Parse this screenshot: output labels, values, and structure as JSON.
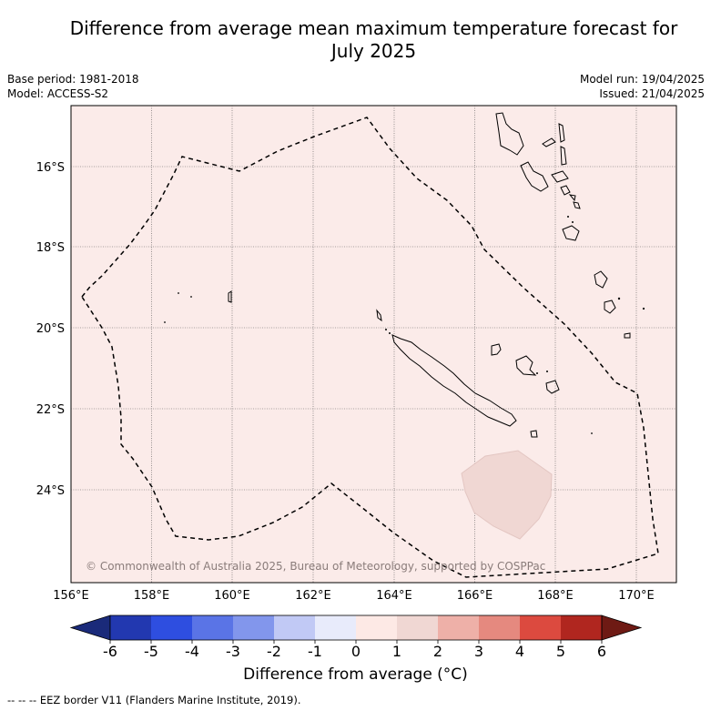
{
  "title_line1": "Difference from average mean maximum temperature forecast for",
  "title_line2": "July 2025",
  "meta_left": {
    "base_period": "Base period: 1981-2018",
    "model": "Model: ACCESS-S2"
  },
  "meta_right": {
    "model_run": "Model run: 19/04/2025",
    "issued": "Issued: 21/04/2025"
  },
  "copyright": "© Commonwealth of Australia 2025, Bureau of Meteorology, supported by COSPPac",
  "lat_labels": [
    "16°S",
    "18°S",
    "20°S",
    "22°S",
    "24°S"
  ],
  "lon_labels": [
    "156°E",
    "158°E",
    "160°E",
    "162°E",
    "164°E",
    "166°E",
    "168°E",
    "170°E"
  ],
  "colorbar": {
    "label": "Difference from average (°C)",
    "ticks": [
      "-6",
      "-5",
      "-4",
      "-3",
      "-2",
      "-1",
      "0",
      "1",
      "2",
      "3",
      "4",
      "5",
      "6"
    ],
    "colors": [
      "#1a2a7a",
      "#2238b0",
      "#2e4ee0",
      "#5a74e6",
      "#8296ec",
      "#c1c9f5",
      "#e8ebfb",
      "#fde9e5",
      "#f0d7d3",
      "#eeb0a8",
      "#e5897f",
      "#dc4a3f",
      "#b0261f",
      "#6e1a14"
    ]
  },
  "legend_note": "-- -- -- EEZ border V11 (Flanders Marine Institute, 2019).",
  "colors": {
    "map_background": "#fbebe9",
    "anomaly_patch": "#f0d7d3"
  }
}
